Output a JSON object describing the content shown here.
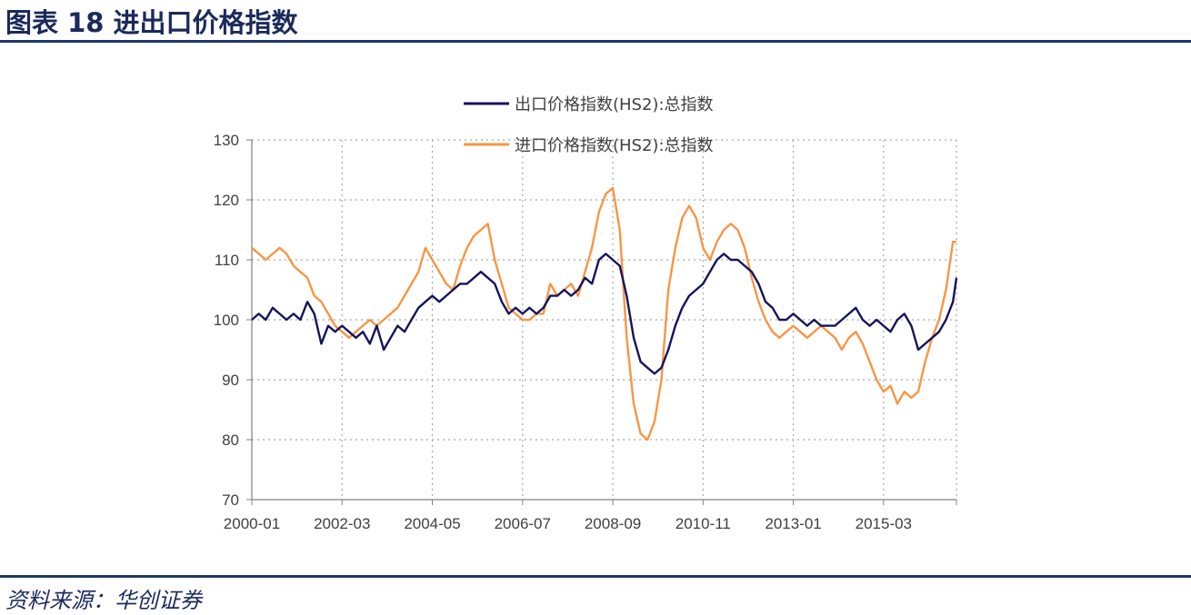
{
  "figure": {
    "title": "图表 18  进出口价格指数",
    "source": "资料来源：华创证券"
  },
  "chart_data": {
    "type": "line",
    "title": "",
    "xlabel": "",
    "ylabel": "",
    "ylim": [
      70,
      130
    ],
    "y_ticks": [
      70,
      80,
      90,
      100,
      110,
      120,
      130
    ],
    "x_start": "2000-01",
    "x_end": "2016-12",
    "x_tick_labels": [
      "2000-01",
      "2002-03",
      "2004-05",
      "2006-07",
      "2008-09",
      "2010-11",
      "2013-01",
      "2015-03"
    ],
    "grid": true,
    "legend_position": "top-center",
    "series": [
      {
        "name": "出口价格指数(HS2):总指数",
        "color": "#14145c",
        "points": [
          [
            "2000-01",
            100
          ],
          [
            "2000-03",
            101
          ],
          [
            "2000-05",
            100
          ],
          [
            "2000-07",
            102
          ],
          [
            "2000-09",
            101
          ],
          [
            "2000-11",
            100
          ],
          [
            "2001-01",
            101
          ],
          [
            "2001-03",
            100
          ],
          [
            "2001-05",
            103
          ],
          [
            "2001-07",
            101
          ],
          [
            "2001-09",
            96
          ],
          [
            "2001-11",
            99
          ],
          [
            "2002-01",
            98
          ],
          [
            "2002-03",
            99
          ],
          [
            "2002-05",
            98
          ],
          [
            "2002-07",
            97
          ],
          [
            "2002-09",
            98
          ],
          [
            "2002-11",
            96
          ],
          [
            "2003-01",
            99
          ],
          [
            "2003-03",
            95
          ],
          [
            "2003-05",
            97
          ],
          [
            "2003-07",
            99
          ],
          [
            "2003-09",
            98
          ],
          [
            "2003-11",
            100
          ],
          [
            "2004-01",
            102
          ],
          [
            "2004-03",
            103
          ],
          [
            "2004-05",
            104
          ],
          [
            "2004-07",
            103
          ],
          [
            "2004-09",
            104
          ],
          [
            "2004-11",
            105
          ],
          [
            "2005-01",
            106
          ],
          [
            "2005-03",
            106
          ],
          [
            "2005-05",
            107
          ],
          [
            "2005-07",
            108
          ],
          [
            "2005-09",
            107
          ],
          [
            "2005-11",
            106
          ],
          [
            "2006-01",
            103
          ],
          [
            "2006-03",
            101
          ],
          [
            "2006-05",
            102
          ],
          [
            "2006-07",
            101
          ],
          [
            "2006-09",
            102
          ],
          [
            "2006-11",
            101
          ],
          [
            "2007-01",
            102
          ],
          [
            "2007-03",
            104
          ],
          [
            "2007-05",
            104
          ],
          [
            "2007-07",
            105
          ],
          [
            "2007-09",
            104
          ],
          [
            "2007-11",
            105
          ],
          [
            "2008-01",
            107
          ],
          [
            "2008-03",
            106
          ],
          [
            "2008-05",
            110
          ],
          [
            "2008-07",
            111
          ],
          [
            "2008-09",
            110
          ],
          [
            "2008-11",
            109
          ],
          [
            "2009-01",
            104
          ],
          [
            "2009-03",
            97
          ],
          [
            "2009-05",
            93
          ],
          [
            "2009-07",
            92
          ],
          [
            "2009-09",
            91
          ],
          [
            "2009-11",
            92
          ],
          [
            "2010-01",
            95
          ],
          [
            "2010-03",
            99
          ],
          [
            "2010-05",
            102
          ],
          [
            "2010-07",
            104
          ],
          [
            "2010-09",
            105
          ],
          [
            "2010-11",
            106
          ],
          [
            "2011-01",
            108
          ],
          [
            "2011-03",
            110
          ],
          [
            "2011-05",
            111
          ],
          [
            "2011-07",
            110
          ],
          [
            "2011-09",
            110
          ],
          [
            "2011-11",
            109
          ],
          [
            "2012-01",
            108
          ],
          [
            "2012-03",
            106
          ],
          [
            "2012-05",
            103
          ],
          [
            "2012-07",
            102
          ],
          [
            "2012-09",
            100
          ],
          [
            "2012-11",
            100
          ],
          [
            "2013-01",
            101
          ],
          [
            "2013-03",
            100
          ],
          [
            "2013-05",
            99
          ],
          [
            "2013-07",
            100
          ],
          [
            "2013-09",
            99
          ],
          [
            "2013-11",
            99
          ],
          [
            "2014-01",
            99
          ],
          [
            "2014-03",
            100
          ],
          [
            "2014-05",
            101
          ],
          [
            "2014-07",
            102
          ],
          [
            "2014-09",
            100
          ],
          [
            "2014-11",
            99
          ],
          [
            "2015-01",
            100
          ],
          [
            "2015-03",
            99
          ],
          [
            "2015-05",
            98
          ],
          [
            "2015-07",
            100
          ],
          [
            "2015-09",
            101
          ],
          [
            "2015-11",
            99
          ],
          [
            "2016-01",
            95
          ],
          [
            "2016-03",
            96
          ],
          [
            "2016-05",
            97
          ],
          [
            "2016-07",
            98
          ],
          [
            "2016-09",
            100
          ],
          [
            "2016-11",
            103
          ],
          [
            "2016-12",
            107
          ]
        ]
      },
      {
        "name": "进口价格指数(HS2):总指数",
        "color": "#f79646",
        "points": [
          [
            "2000-01",
            112
          ],
          [
            "2000-03",
            111
          ],
          [
            "2000-05",
            110
          ],
          [
            "2000-07",
            111
          ],
          [
            "2000-09",
            112
          ],
          [
            "2000-11",
            111
          ],
          [
            "2001-01",
            109
          ],
          [
            "2001-03",
            108
          ],
          [
            "2001-05",
            107
          ],
          [
            "2001-07",
            104
          ],
          [
            "2001-09",
            103
          ],
          [
            "2001-11",
            101
          ],
          [
            "2002-01",
            99
          ],
          [
            "2002-03",
            98
          ],
          [
            "2002-05",
            97
          ],
          [
            "2002-07",
            98
          ],
          [
            "2002-09",
            99
          ],
          [
            "2002-11",
            100
          ],
          [
            "2003-01",
            99
          ],
          [
            "2003-03",
            100
          ],
          [
            "2003-05",
            101
          ],
          [
            "2003-07",
            102
          ],
          [
            "2003-09",
            104
          ],
          [
            "2003-11",
            106
          ],
          [
            "2004-01",
            108
          ],
          [
            "2004-03",
            112
          ],
          [
            "2004-05",
            110
          ],
          [
            "2004-07",
            108
          ],
          [
            "2004-09",
            106
          ],
          [
            "2004-11",
            105
          ],
          [
            "2005-01",
            109
          ],
          [
            "2005-03",
            112
          ],
          [
            "2005-05",
            114
          ],
          [
            "2005-07",
            115
          ],
          [
            "2005-09",
            116
          ],
          [
            "2005-11",
            110
          ],
          [
            "2006-01",
            106
          ],
          [
            "2006-03",
            102
          ],
          [
            "2006-05",
            101
          ],
          [
            "2006-07",
            100
          ],
          [
            "2006-09",
            100
          ],
          [
            "2006-11",
            101
          ],
          [
            "2007-01",
            101
          ],
          [
            "2007-03",
            106
          ],
          [
            "2007-05",
            104
          ],
          [
            "2007-07",
            105
          ],
          [
            "2007-09",
            106
          ],
          [
            "2007-11",
            104
          ],
          [
            "2008-01",
            108
          ],
          [
            "2008-03",
            112
          ],
          [
            "2008-05",
            118
          ],
          [
            "2008-07",
            121
          ],
          [
            "2008-09",
            122
          ],
          [
            "2008-11",
            115
          ],
          [
            "2009-01",
            97
          ],
          [
            "2009-03",
            86
          ],
          [
            "2009-05",
            81
          ],
          [
            "2009-07",
            80
          ],
          [
            "2009-09",
            83
          ],
          [
            "2009-11",
            90
          ],
          [
            "2010-01",
            105
          ],
          [
            "2010-03",
            112
          ],
          [
            "2010-05",
            117
          ],
          [
            "2010-07",
            119
          ],
          [
            "2010-09",
            117
          ],
          [
            "2010-11",
            112
          ],
          [
            "2011-01",
            110
          ],
          [
            "2011-03",
            113
          ],
          [
            "2011-05",
            115
          ],
          [
            "2011-07",
            116
          ],
          [
            "2011-09",
            115
          ],
          [
            "2011-11",
            112
          ],
          [
            "2012-01",
            107
          ],
          [
            "2012-03",
            103
          ],
          [
            "2012-05",
            100
          ],
          [
            "2012-07",
            98
          ],
          [
            "2012-09",
            97
          ],
          [
            "2012-11",
            98
          ],
          [
            "2013-01",
            99
          ],
          [
            "2013-03",
            98
          ],
          [
            "2013-05",
            97
          ],
          [
            "2013-07",
            98
          ],
          [
            "2013-09",
            99
          ],
          [
            "2013-11",
            98
          ],
          [
            "2014-01",
            97
          ],
          [
            "2014-03",
            95
          ],
          [
            "2014-05",
            97
          ],
          [
            "2014-07",
            98
          ],
          [
            "2014-09",
            96
          ],
          [
            "2014-11",
            93
          ],
          [
            "2015-01",
            90
          ],
          [
            "2015-03",
            88
          ],
          [
            "2015-05",
            89
          ],
          [
            "2015-07",
            86
          ],
          [
            "2015-09",
            88
          ],
          [
            "2015-11",
            87
          ],
          [
            "2016-01",
            88
          ],
          [
            "2016-03",
            93
          ],
          [
            "2016-05",
            97
          ],
          [
            "2016-07",
            100
          ],
          [
            "2016-09",
            105
          ],
          [
            "2016-11",
            113
          ],
          [
            "2016-12",
            113
          ]
        ]
      }
    ]
  }
}
